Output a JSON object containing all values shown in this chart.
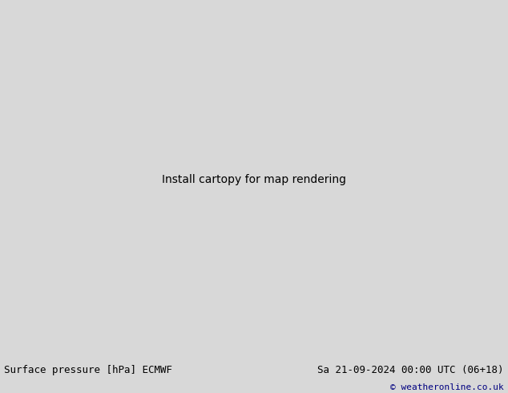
{
  "title_left": "Surface pressure [hPa] ECMWF",
  "title_right": "Sa 21-09-2024 00:00 UTC (06+18)",
  "copyright": "© weatheronline.co.uk",
  "bg_color": "#d8d8d8",
  "land_color": "#c8e8a0",
  "sea_color": "#f0f0f0",
  "border_color": "#888888",
  "footer_bg_color": "#c8c8c8",
  "footer_text_color": "#000000",
  "footer_copy_color": "#000080",
  "contour_blue_color": "#0000cc",
  "contour_red_color": "#cc0000",
  "contour_black_color": "#000000",
  "label_fontsize": 6.5,
  "footer_fontsize": 9,
  "figwidth": 6.34,
  "figheight": 4.9,
  "dpi": 100,
  "lon_min": -170,
  "lon_max": -50,
  "lat_min": 10,
  "lat_max": 80
}
